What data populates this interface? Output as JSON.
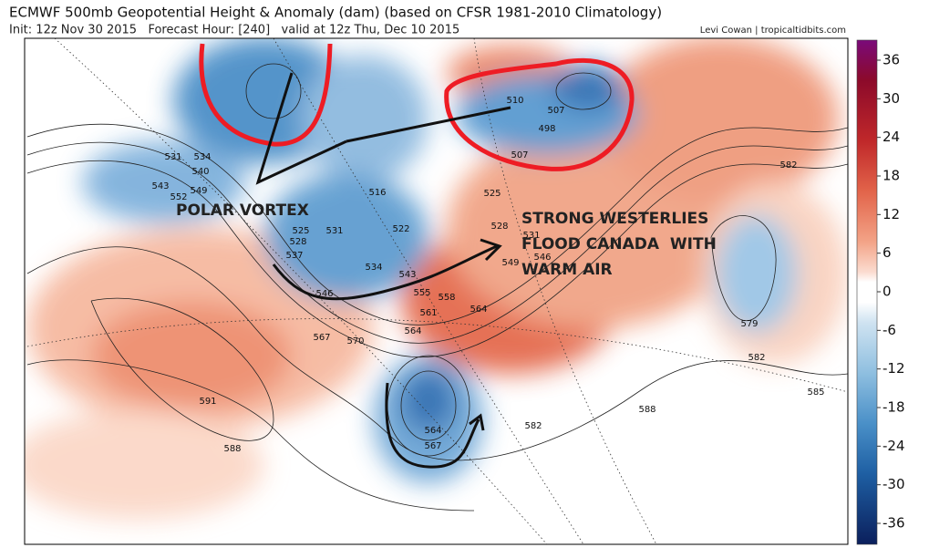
{
  "header": {
    "title": "ECMWF 500mb Geopotential Height & Anomaly (dam) (based on CFSR 1981-2010 Climatology)",
    "init": "Init: 12z Nov 30 2015   Forecast Hour: [240]   valid at 12z Thu, Dec 10 2015",
    "credit": "Levi Cowan | tropicaltidbits.com"
  },
  "colorbar": {
    "ticks": [
      36,
      30,
      24,
      18,
      12,
      6,
      0,
      -6,
      -12,
      -18,
      -24,
      -30,
      -36
    ]
  },
  "annotations": {
    "polar_vortex": "POLAR VORTEX",
    "westerlies": [
      "STRONG WESTERLIES",
      "FLOOD CANADA  WITH",
      "WARM AIR"
    ]
  },
  "contour_labels": [
    531,
    534,
    540,
    543,
    552,
    549,
    525,
    528,
    537,
    546,
    531,
    516,
    522,
    534,
    543,
    555,
    558,
    561,
    564,
    564,
    567,
    570,
    510,
    507,
    498,
    507,
    525,
    528,
    531,
    546,
    549,
    582,
    579,
    582,
    585,
    588,
    582,
    591,
    588,
    564,
    567
  ]
}
